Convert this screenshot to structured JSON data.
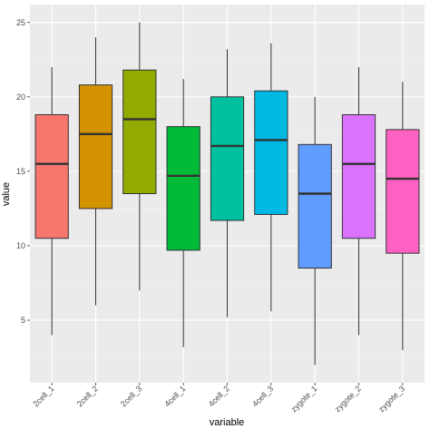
{
  "chart_data": {
    "type": "boxplot",
    "title": "",
    "xlabel": "variable",
    "ylabel": "value",
    "ylim": [
      0.8,
      26.2
    ],
    "yticks": [
      5,
      10,
      15,
      20,
      25
    ],
    "grid": true,
    "legend": "none",
    "categories": [
      "2cell_1",
      "2cell_2",
      "2cell_3",
      "4cell_1",
      "4cell_2",
      "4cell_3",
      "zygote_1",
      "zygote_2",
      "zygote_3"
    ],
    "boxes": [
      {
        "min": 4.0,
        "q1": 10.5,
        "median": 15.5,
        "q3": 18.8,
        "max": 22.0,
        "color": "#F8766D"
      },
      {
        "min": 6.0,
        "q1": 12.5,
        "median": 17.5,
        "q3": 20.8,
        "max": 24.0,
        "color": "#D39200"
      },
      {
        "min": 7.0,
        "q1": 13.5,
        "median": 18.5,
        "q3": 21.8,
        "max": 25.0,
        "color": "#93AA00"
      },
      {
        "min": 3.2,
        "q1": 9.7,
        "median": 14.7,
        "q3": 18.0,
        "max": 21.2,
        "color": "#00BA38"
      },
      {
        "min": 5.2,
        "q1": 11.7,
        "median": 16.7,
        "q3": 20.0,
        "max": 23.2,
        "color": "#00C19F"
      },
      {
        "min": 5.6,
        "q1": 12.1,
        "median": 17.1,
        "q3": 20.4,
        "max": 23.6,
        "color": "#00B9E3"
      },
      {
        "min": 2.0,
        "q1": 8.5,
        "median": 13.5,
        "q3": 16.8,
        "max": 20.0,
        "color": "#619CFF"
      },
      {
        "min": 4.0,
        "q1": 10.5,
        "median": 15.5,
        "q3": 18.8,
        "max": 22.0,
        "color": "#DB72FB"
      },
      {
        "min": 3.0,
        "q1": 9.5,
        "median": 14.5,
        "q3": 17.8,
        "max": 21.0,
        "color": "#FF61C3"
      }
    ]
  },
  "colors": {
    "panel_background": "#EBEBEB",
    "grid_major": "#FFFFFF",
    "grid_minor": "#F5F5F5",
    "outline": "#333333",
    "tick_label": "#4D4D4D"
  }
}
